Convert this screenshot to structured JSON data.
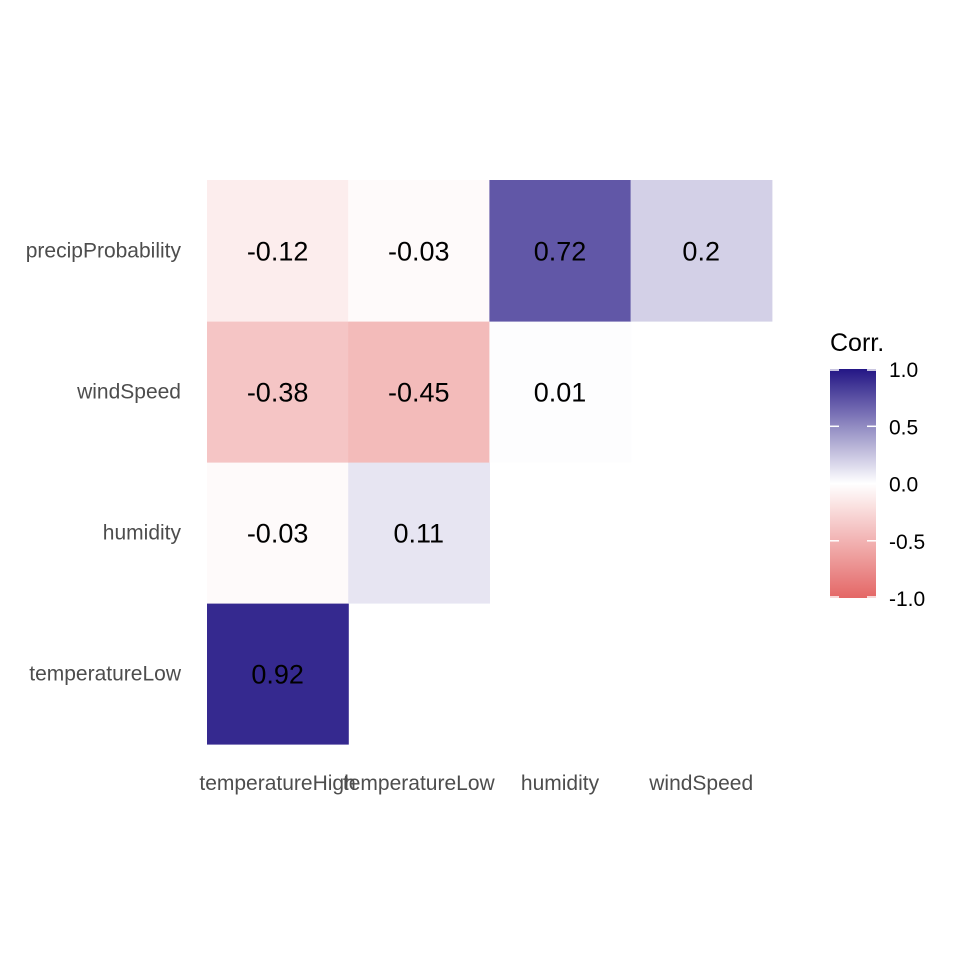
{
  "chart_data": {
    "type": "heatmap",
    "x_categories": [
      "temperatureHigh",
      "temperatureLow",
      "humidity",
      "windSpeed"
    ],
    "y_categories": [
      "temperatureLow",
      "humidity",
      "windSpeed",
      "precipProbability"
    ],
    "cells": [
      {
        "x": "temperatureHigh",
        "y": "temperatureLow",
        "value": 0.92,
        "label": "0.92"
      },
      {
        "x": "temperatureHigh",
        "y": "humidity",
        "value": -0.03,
        "label": "-0.03"
      },
      {
        "x": "temperatureLow",
        "y": "humidity",
        "value": 0.11,
        "label": "0.11"
      },
      {
        "x": "temperatureHigh",
        "y": "windSpeed",
        "value": -0.38,
        "label": "-0.38"
      },
      {
        "x": "temperatureLow",
        "y": "windSpeed",
        "value": -0.45,
        "label": "-0.45"
      },
      {
        "x": "humidity",
        "y": "windSpeed",
        "value": 0.01,
        "label": "0.01"
      },
      {
        "x": "temperatureHigh",
        "y": "precipProbability",
        "value": -0.12,
        "label": "-0.12"
      },
      {
        "x": "temperatureLow",
        "y": "precipProbability",
        "value": -0.03,
        "label": "-0.03"
      },
      {
        "x": "humidity",
        "y": "precipProbability",
        "value": 0.72,
        "label": "0.72"
      },
      {
        "x": "windSpeed",
        "y": "precipProbability",
        "value": 0.2,
        "label": "0.2"
      }
    ],
    "legend": {
      "title": "Corr.",
      "placement": "right",
      "limits": [
        -1,
        1
      ],
      "ticks": [
        {
          "value": 1,
          "label": "1.0"
        },
        {
          "value": 0.5,
          "label": "0.5"
        },
        {
          "value": 0,
          "label": "0.0"
        },
        {
          "value": -0.5,
          "label": "-0.5"
        },
        {
          "value": -1,
          "label": "-1.0"
        }
      ]
    },
    "colors": {
      "low": "#E46766",
      "mid": "#FFFFFF",
      "high": "#231685"
    },
    "grid": false
  }
}
